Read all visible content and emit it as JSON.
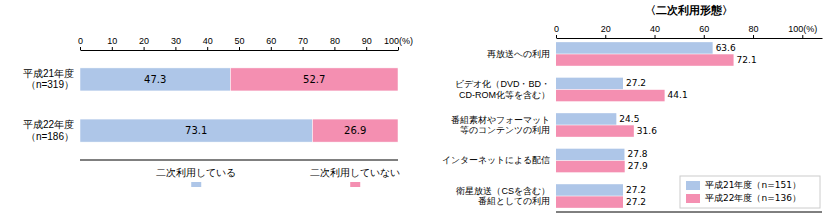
{
  "chart_data": [
    {
      "type": "bar",
      "orientation": "horizontal",
      "stacked": true,
      "data_labels": true,
      "categories": [
        "平成21年度\n（n=319）",
        "平成22年度\n（n=186）"
      ],
      "series": [
        {
          "name": "二次利用している",
          "color": "#aec6e8",
          "values": [
            47.3,
            73.1
          ]
        },
        {
          "name": "二次利用していない",
          "color": "#f48fb1",
          "values": [
            52.7,
            26.9
          ]
        }
      ],
      "xlim": [
        0,
        100
      ],
      "xticks": [
        0,
        10,
        20,
        30,
        40,
        50,
        60,
        70,
        80,
        90,
        {
          "value": 100,
          "label": "100(%)"
        }
      ]
    },
    {
      "type": "bar",
      "title": "〈二次利用形態〉",
      "orientation": "horizontal",
      "data_labels": true,
      "legend": "lower right",
      "categories": [
        "再放送への利用",
        "ビデオ化（DVD・BD・\nCD-ROM化等を含む）",
        "番組素材やフォーマット\n等のコンテンツの利用",
        "インターネットによる配信",
        "衛星放送（CSを含む）\n番組としての利用"
      ],
      "series": [
        {
          "name": "平成21年度（n=151）",
          "color": "#aec6e8",
          "values": [
            63.6,
            27.2,
            24.5,
            27.8,
            27.2
          ]
        },
        {
          "name": "平成22年度（n=136）",
          "color": "#f48fb1",
          "values": [
            72.1,
            44.1,
            31.6,
            27.9,
            27.2
          ]
        }
      ],
      "xlim": [
        0,
        108
      ],
      "xticks": [
        0,
        20,
        40,
        60,
        80,
        {
          "value": 100,
          "label": "100(%)"
        }
      ]
    }
  ]
}
